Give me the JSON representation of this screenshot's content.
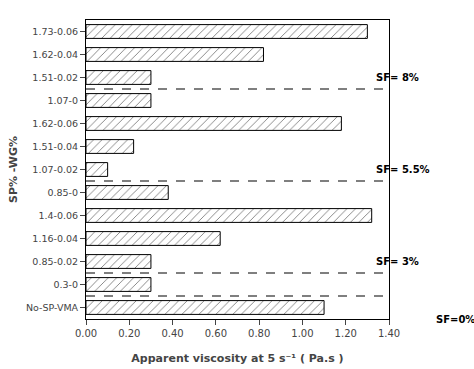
{
  "chart_data": {
    "type": "bar",
    "orientation": "horizontal",
    "categories": [
      "1.73-0.06",
      "1.62-0.04",
      "1.51-0.02",
      "1.07-0",
      "1.62-0.06",
      "1.51-0.04",
      "1.07-0.02",
      "0.85-0",
      "1.4-0.06",
      "1.16-0.04",
      "0.85-0.02",
      "0.3-0",
      "No-SP-VMA"
    ],
    "values": [
      1.3,
      0.82,
      0.3,
      0.3,
      1.18,
      0.22,
      0.1,
      0.38,
      1.32,
      0.62,
      0.3,
      0.3,
      1.1
    ],
    "color": "white",
    "xlabel": "Apparent viscosity at 5 s⁻¹ ( Pa.s )",
    "ylabel": "SP% -WG%",
    "annotations": [
      "SF= 8%",
      "SF= 5.5%",
      "SF= 3%",
      "SF=0%"
    ],
    "xlim": [
      0.0,
      1.4
    ],
    "xticks": [
      {
        "value": 0.0,
        "label": "0.00"
      },
      {
        "value": 0.2,
        "label": "0.20"
      },
      {
        "value": 0.4,
        "label": "0.40"
      },
      {
        "value": 0.6,
        "label": "0.60"
      },
      {
        "value": 0.8,
        "label": "0.80"
      },
      {
        "value": 1.0,
        "label": "1.00"
      },
      {
        "value": 1.2,
        "label": "1.20"
      },
      {
        "value": 1.4,
        "label": "1.40"
      }
    ],
    "grid": false
  }
}
